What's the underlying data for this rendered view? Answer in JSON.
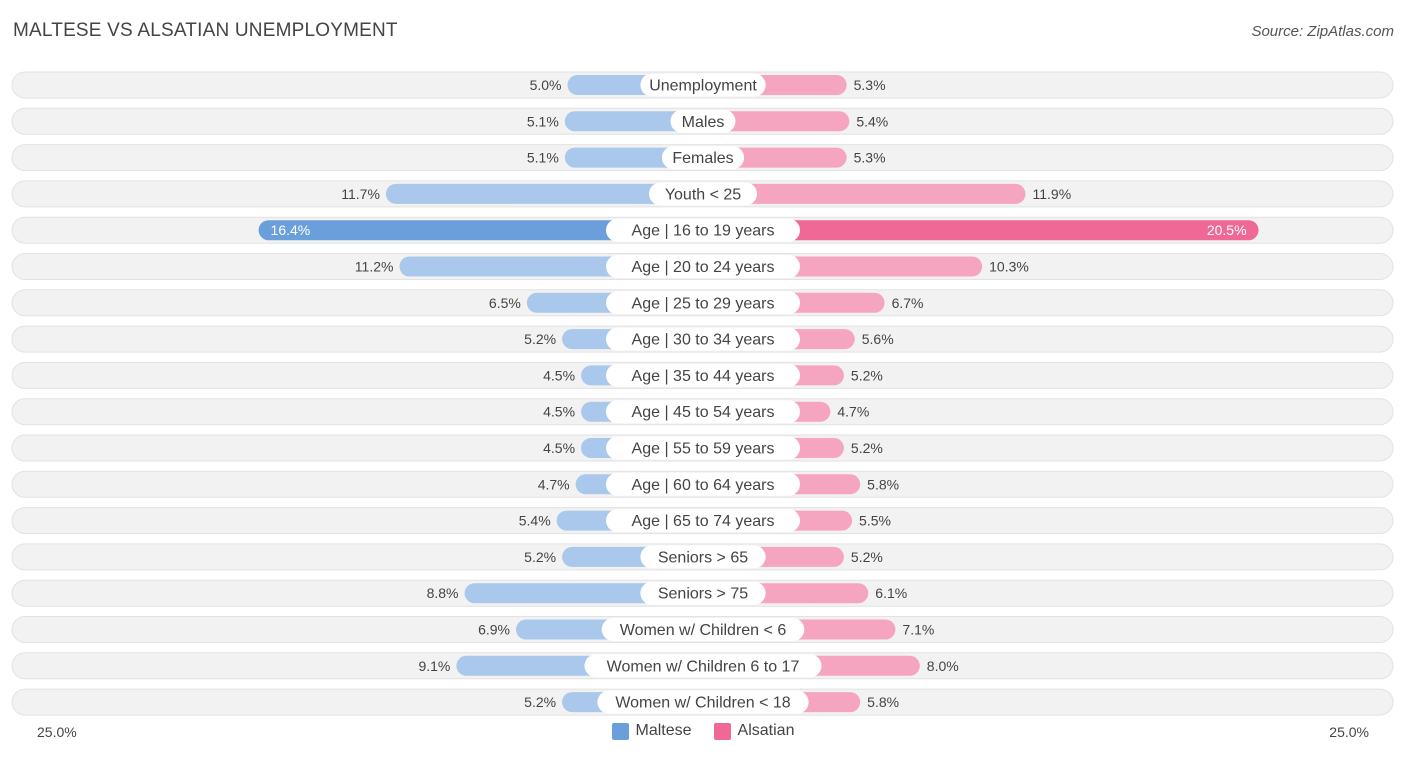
{
  "header": {
    "title": "MALTESE VS ALSATIAN UNEMPLOYMENT",
    "source": "Source: ZipAtlas.com"
  },
  "colors": {
    "maltese_light": "#a9c8ec",
    "maltese_dark": "#6a9fdc",
    "alsatian_light": "#f6a5c1",
    "alsatian_dark": "#f06896",
    "row_bg": "#f2f2f2",
    "row_border": "#e2e2e2"
  },
  "legend": {
    "maltese": "Maltese",
    "alsatian": "Alsatian"
  },
  "axis": {
    "left_label": "25.0%",
    "right_label": "25.0%"
  },
  "chart_data": {
    "type": "bar",
    "orientation": "horizontal-diverging",
    "title": "MALTESE VS ALSATIAN UNEMPLOYMENT",
    "xlim": [
      0,
      25
    ],
    "unit": "%",
    "categories": [
      "Unemployment",
      "Males",
      "Females",
      "Youth < 25",
      "Age | 16 to 19 years",
      "Age | 20 to 24 years",
      "Age | 25 to 29 years",
      "Age | 30 to 34 years",
      "Age | 35 to 44 years",
      "Age | 45 to 54 years",
      "Age | 55 to 59 years",
      "Age | 60 to 64 years",
      "Age | 65 to 74 years",
      "Seniors > 65",
      "Seniors > 75",
      "Women w/ Children < 6",
      "Women w/ Children 6 to 17",
      "Women w/ Children < 18"
    ],
    "series": [
      {
        "name": "Maltese",
        "values": [
          5.0,
          5.1,
          5.1,
          11.7,
          16.4,
          11.2,
          6.5,
          5.2,
          4.5,
          4.5,
          4.5,
          4.7,
          5.4,
          5.2,
          8.8,
          6.9,
          9.1,
          5.2
        ],
        "labels": [
          "5.0%",
          "5.1%",
          "5.1%",
          "11.7%",
          "16.4%",
          "11.2%",
          "6.5%",
          "5.2%",
          "4.5%",
          "4.5%",
          "4.5%",
          "4.7%",
          "5.4%",
          "5.2%",
          "8.8%",
          "6.9%",
          "9.1%",
          "5.2%"
        ]
      },
      {
        "name": "Alsatian",
        "values": [
          5.3,
          5.4,
          5.3,
          11.9,
          20.5,
          10.3,
          6.7,
          5.6,
          5.2,
          4.7,
          5.2,
          5.8,
          5.5,
          5.2,
          6.1,
          7.1,
          8.0,
          5.8
        ],
        "labels": [
          "5.3%",
          "5.4%",
          "5.3%",
          "11.9%",
          "20.5%",
          "10.3%",
          "6.7%",
          "5.6%",
          "5.2%",
          "4.7%",
          "5.2%",
          "5.8%",
          "5.5%",
          "5.2%",
          "6.1%",
          "7.1%",
          "8.0%",
          "5.8%"
        ]
      }
    ]
  }
}
